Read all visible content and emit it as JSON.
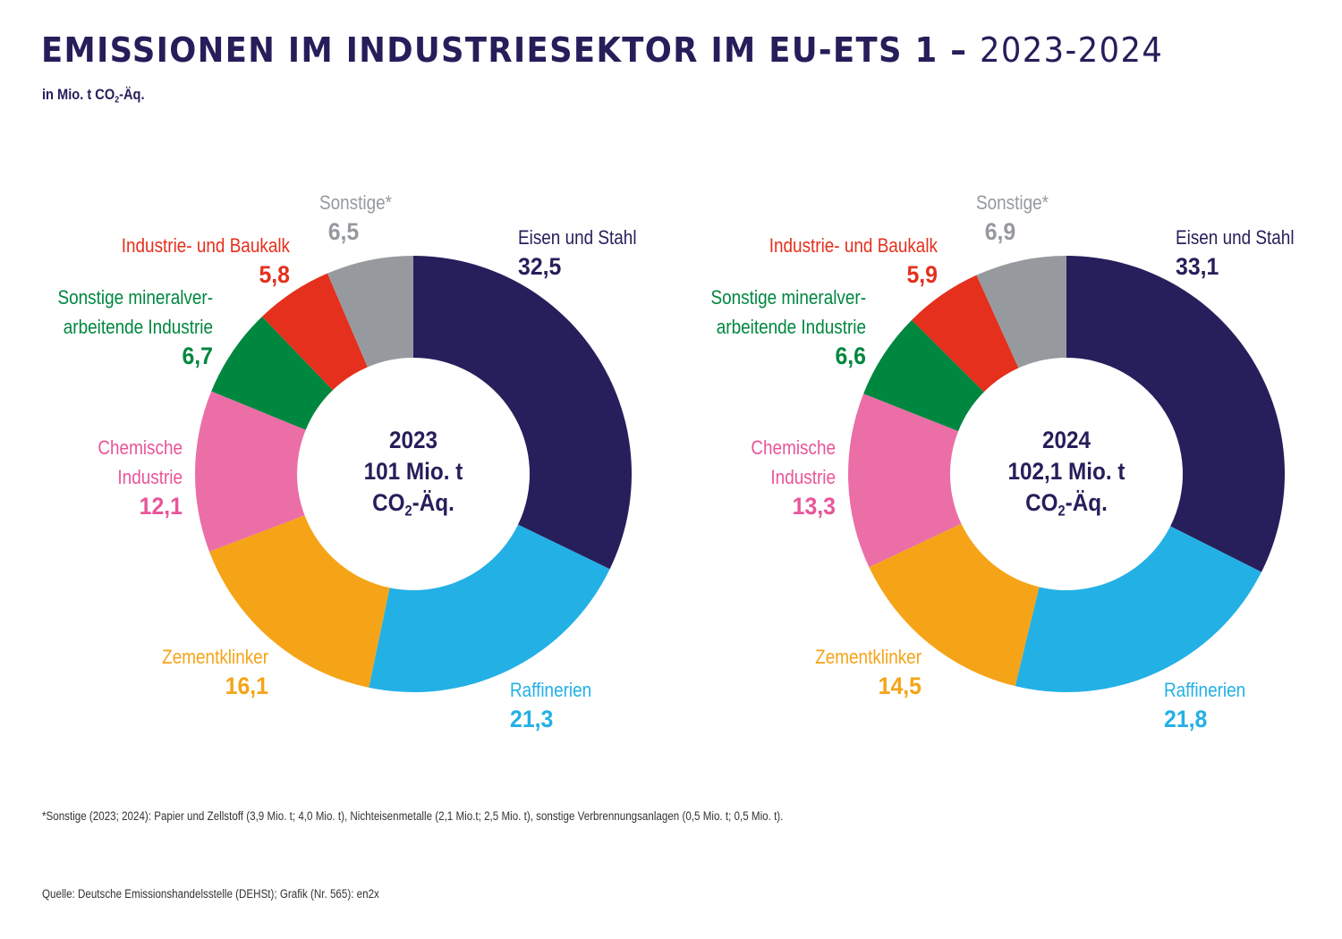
{
  "header": {
    "title_main": "EMISSIONEN IM INDUSTRIESEKTOR IM EU-ETS 1 – ",
    "title_years": "2023-2024",
    "unit_prefix": "in Mio. t CO",
    "unit_sub": "2",
    "unit_suffix": "-Äq."
  },
  "colors": {
    "eisen_stahl": "#271f5b",
    "raffinerien": "#23b0e5",
    "zementklinker": "#f5a417",
    "chemie": "#ec6ea6",
    "mineral": "#00873f",
    "kalk": "#e4301c",
    "sonstige": "#969a9e",
    "title": "#261e5a"
  },
  "chart_data": [
    {
      "type": "pie",
      "variant": "donut",
      "title": "2023",
      "center_label": {
        "year": "2023",
        "total": "101 Mio. t",
        "unit_prefix": "CO",
        "unit_sub": "2",
        "unit_suffix": "-Äq."
      },
      "total": 101,
      "unit": "Mio. t CO2-Äq.",
      "slices": [
        {
          "key": "eisen_stahl",
          "label": "Eisen und Stahl",
          "value": 32.5,
          "display": "32,5"
        },
        {
          "key": "raffinerien",
          "label": "Raffinerien",
          "value": 21.3,
          "display": "21,3"
        },
        {
          "key": "zementklinker",
          "label": "Zementklinker",
          "value": 16.1,
          "display": "16,1"
        },
        {
          "key": "chemie",
          "label": "Chemische Industrie",
          "label_lines": [
            "Chemische",
            "Industrie"
          ],
          "value": 12.1,
          "display": "12,1"
        },
        {
          "key": "mineral",
          "label": "Sonstige mineralverarbeitende Industrie",
          "label_lines": [
            "Sonstige mineralver-",
            "arbeitende Industrie"
          ],
          "value": 6.7,
          "display": "6,7"
        },
        {
          "key": "kalk",
          "label": "Industrie- und Baukalk",
          "value": 5.8,
          "display": "5,8"
        },
        {
          "key": "sonstige",
          "label": "Sonstige*",
          "value": 6.5,
          "display": "6,5"
        }
      ]
    },
    {
      "type": "pie",
      "variant": "donut",
      "title": "2024",
      "center_label": {
        "year": "2024",
        "total": "102,1 Mio. t",
        "unit_prefix": "CO",
        "unit_sub": "2",
        "unit_suffix": "-Äq."
      },
      "total": 102.1,
      "unit": "Mio. t CO2-Äq.",
      "slices": [
        {
          "key": "eisen_stahl",
          "label": "Eisen und Stahl",
          "value": 33.1,
          "display": "33,1"
        },
        {
          "key": "raffinerien",
          "label": "Raffinerien",
          "value": 21.8,
          "display": "21,8"
        },
        {
          "key": "zementklinker",
          "label": "Zementklinker",
          "value": 14.5,
          "display": "14,5"
        },
        {
          "key": "chemie",
          "label": "Chemische Industrie",
          "label_lines": [
            "Chemische",
            "Industrie"
          ],
          "value": 13.3,
          "display": "13,3"
        },
        {
          "key": "mineral",
          "label": "Sonstige mineralverarbeitende Industrie",
          "label_lines": [
            "Sonstige mineralver-",
            "arbeitende Industrie"
          ],
          "value": 6.6,
          "display": "6,6"
        },
        {
          "key": "kalk",
          "label": "Industrie- und Baukalk",
          "value": 5.9,
          "display": "5,9"
        },
        {
          "key": "sonstige",
          "label": "Sonstige*",
          "value": 6.9,
          "display": "6,9"
        }
      ]
    }
  ],
  "footnote": "*Sonstige (2023; 2024): Papier und Zellstoff (3,9 Mio. t; 4,0 Mio. t), Nichteisenmetalle (2,1 Mio.t; 2,5 Mio. t), sonstige Verbrennungsanlagen (0,5 Mio. t; 0,5 Mio. t).",
  "source": "Quelle: Deutsche Emissionshandelsstelle (DEHSt); Grafik (Nr. 565): en2x"
}
